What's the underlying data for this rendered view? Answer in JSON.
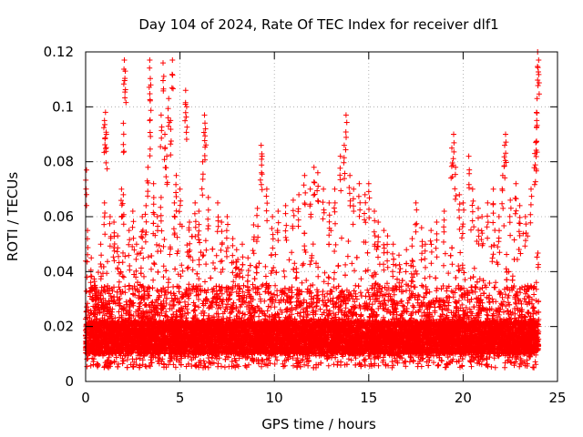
{
  "chart_data": {
    "type": "scatter",
    "title": "Day 104 of 2024, Rate Of TEC Index for receiver dlf1",
    "xlabel": "GPS time / hours",
    "ylabel": "ROTI / TECUs",
    "xlim": [
      0,
      25
    ],
    "ylim": [
      0,
      0.12
    ],
    "xticks": [
      0,
      5,
      10,
      15,
      20,
      25
    ],
    "yticks": [
      0,
      0.02,
      0.04,
      0.06,
      0.08,
      0.1,
      0.12
    ],
    "xtick_labels": [
      "0",
      "5",
      "10",
      "15",
      "20",
      "25"
    ],
    "ytick_labels": [
      "0",
      "0.02",
      "0.04",
      "0.06",
      "0.08",
      "0.1",
      "0.12"
    ],
    "grid": true,
    "marker": "+",
    "series": [
      {
        "name": "ROTI",
        "color": "#ff0000",
        "points": [
          [
            0.05,
            0.077
          ],
          [
            0.1,
            0.055
          ],
          [
            0.3,
            0.045
          ],
          [
            0.5,
            0.035
          ],
          [
            0.8,
            0.05
          ],
          [
            1.0,
            0.065
          ],
          [
            1.0,
            0.095
          ],
          [
            1.05,
            0.098
          ],
          [
            1.1,
            0.09
          ],
          [
            1.3,
            0.06
          ],
          [
            1.5,
            0.058
          ],
          [
            1.7,
            0.053
          ],
          [
            1.9,
            0.07
          ],
          [
            2.0,
            0.068
          ],
          [
            2.0,
            0.094
          ],
          [
            2.05,
            0.117
          ],
          [
            2.1,
            0.113
          ],
          [
            2.3,
            0.055
          ],
          [
            2.5,
            0.062
          ],
          [
            2.7,
            0.05
          ],
          [
            3.0,
            0.06
          ],
          [
            3.2,
            0.064
          ],
          [
            3.3,
            0.078
          ],
          [
            3.4,
            0.095
          ],
          [
            3.4,
            0.117
          ],
          [
            3.45,
            0.108
          ],
          [
            3.6,
            0.072
          ],
          [
            3.8,
            0.06
          ],
          [
            4.0,
            0.067
          ],
          [
            4.0,
            0.097
          ],
          [
            4.1,
            0.116
          ],
          [
            4.2,
            0.09
          ],
          [
            4.3,
            0.082
          ],
          [
            4.4,
            0.103
          ],
          [
            4.5,
            0.095
          ],
          [
            4.6,
            0.117
          ],
          [
            4.7,
            0.065
          ],
          [
            4.8,
            0.075
          ],
          [
            5.0,
            0.07
          ],
          [
            5.3,
            0.106
          ],
          [
            5.35,
            0.1
          ],
          [
            5.5,
            0.058
          ],
          [
            5.8,
            0.065
          ],
          [
            6.0,
            0.062
          ],
          [
            6.2,
            0.08
          ],
          [
            6.3,
            0.097
          ],
          [
            6.35,
            0.092
          ],
          [
            6.5,
            0.067
          ],
          [
            7.0,
            0.065
          ],
          [
            7.2,
            0.058
          ],
          [
            7.5,
            0.06
          ],
          [
            7.8,
            0.052
          ],
          [
            8.0,
            0.048
          ],
          [
            8.3,
            0.05
          ],
          [
            8.6,
            0.045
          ],
          [
            8.9,
            0.057
          ],
          [
            9.1,
            0.063
          ],
          [
            9.3,
            0.086
          ],
          [
            9.35,
            0.082
          ],
          [
            9.6,
            0.07
          ],
          [
            9.9,
            0.06
          ],
          [
            10.2,
            0.062
          ],
          [
            10.6,
            0.064
          ],
          [
            11.0,
            0.066
          ],
          [
            11.3,
            0.068
          ],
          [
            11.6,
            0.075
          ],
          [
            11.9,
            0.07
          ],
          [
            12.1,
            0.078
          ],
          [
            12.3,
            0.076
          ],
          [
            12.6,
            0.07
          ],
          [
            12.9,
            0.065
          ],
          [
            13.2,
            0.07
          ],
          [
            13.5,
            0.082
          ],
          [
            13.7,
            0.086
          ],
          [
            13.8,
            0.097
          ],
          [
            14.0,
            0.075
          ],
          [
            14.2,
            0.07
          ],
          [
            14.5,
            0.072
          ],
          [
            14.8,
            0.068
          ],
          [
            15.0,
            0.072
          ],
          [
            15.3,
            0.062
          ],
          [
            15.5,
            0.058
          ],
          [
            15.8,
            0.055
          ],
          [
            16.0,
            0.053
          ],
          [
            16.3,
            0.05
          ],
          [
            16.6,
            0.046
          ],
          [
            17.0,
            0.048
          ],
          [
            17.3,
            0.052
          ],
          [
            17.5,
            0.065
          ],
          [
            17.8,
            0.056
          ],
          [
            18.0,
            0.05
          ],
          [
            18.3,
            0.055
          ],
          [
            18.6,
            0.058
          ],
          [
            19.0,
            0.062
          ],
          [
            19.4,
            0.085
          ],
          [
            19.5,
            0.09
          ],
          [
            19.6,
            0.078
          ],
          [
            19.8,
            0.068
          ],
          [
            20.0,
            0.065
          ],
          [
            20.3,
            0.082
          ],
          [
            20.5,
            0.07
          ],
          [
            20.8,
            0.063
          ],
          [
            21.0,
            0.06
          ],
          [
            21.3,
            0.065
          ],
          [
            21.6,
            0.07
          ],
          [
            21.9,
            0.06
          ],
          [
            22.1,
            0.075
          ],
          [
            22.2,
            0.086
          ],
          [
            22.25,
            0.09
          ],
          [
            22.5,
            0.066
          ],
          [
            22.8,
            0.072
          ],
          [
            23.0,
            0.064
          ],
          [
            23.3,
            0.06
          ],
          [
            23.6,
            0.07
          ],
          [
            23.8,
            0.083
          ],
          [
            23.85,
            0.087
          ],
          [
            23.9,
            0.095
          ],
          [
            23.92,
            0.103
          ],
          [
            23.95,
            0.12
          ],
          [
            24.0,
            0.117
          ]
        ]
      }
    ],
    "background_density": {
      "description": "Dense band of ROTI measurements spanning the full day",
      "x_range": [
        0,
        24
      ],
      "typical_range": [
        0.005,
        0.03
      ],
      "core_range": [
        0.01,
        0.022
      ],
      "point_count": 14000,
      "envelope_hours": [
        0,
        2,
        4,
        5,
        6,
        8,
        10,
        12,
        14,
        16,
        18,
        19.5,
        21,
        23,
        24
      ],
      "envelope_upper": [
        0.045,
        0.05,
        0.06,
        0.06,
        0.055,
        0.045,
        0.05,
        0.055,
        0.055,
        0.048,
        0.04,
        0.05,
        0.06,
        0.058,
        0.05
      ]
    }
  }
}
